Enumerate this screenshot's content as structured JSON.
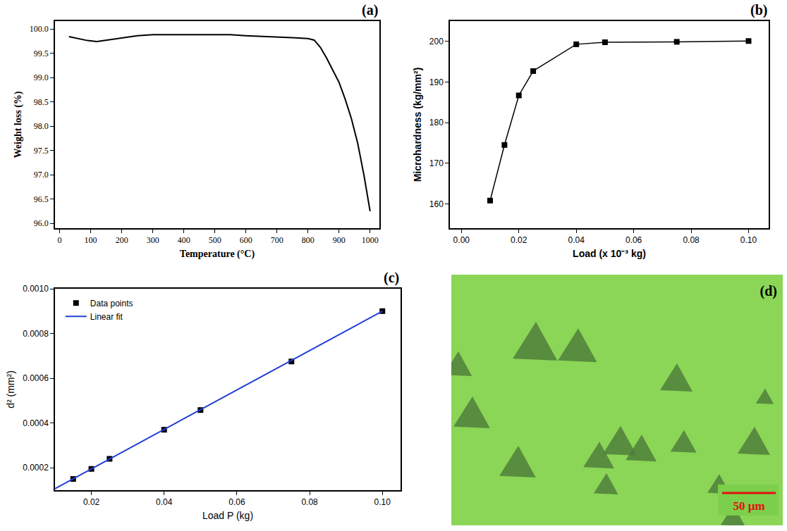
{
  "chart_data": [
    {
      "type": "line",
      "label": "(a)",
      "x_label": "Temperature (°C)",
      "y_label": "Weight loss (%)",
      "xlim": [
        -15,
        1030
      ],
      "ylim": [
        95.9,
        100.16
      ],
      "xticks": [
        0,
        100,
        200,
        300,
        400,
        500,
        600,
        700,
        800,
        900,
        1000
      ],
      "yticks": [
        {
          "value": 96,
          "label": "96.0"
        },
        {
          "value": 96.5,
          "label": "96.5"
        },
        {
          "value": 97,
          "label": "97.0"
        },
        {
          "value": 97.5,
          "label": "97.5"
        },
        {
          "value": 98,
          "label": "98.0"
        },
        {
          "value": 98.5,
          "label": "98.5"
        },
        {
          "value": 99,
          "label": "99.0"
        },
        {
          "value": 99.5,
          "label": "99.5"
        },
        {
          "value": 100,
          "label": "100.0"
        }
      ],
      "grid": false,
      "series": [
        {
          "type": "line",
          "color": "#000000",
          "x": [
            30,
            60,
            90,
            120,
            150,
            200,
            250,
            300,
            400,
            500,
            550,
            600,
            650,
            700,
            750,
            800,
            820,
            840,
            860,
            880,
            900,
            920,
            940,
            960,
            980,
            1000
          ],
          "values": [
            99.84,
            99.8,
            99.76,
            99.74,
            99.77,
            99.82,
            99.86,
            99.88,
            99.88,
            99.88,
            99.88,
            99.86,
            99.85,
            99.83,
            99.82,
            99.8,
            99.77,
            99.62,
            99.4,
            99.15,
            98.9,
            98.55,
            98.15,
            97.65,
            97.0,
            96.25
          ]
        }
      ]
    },
    {
      "type": "line",
      "label": "(b)",
      "x_label": "Load (x 10⁻³ kg)",
      "y_label": "Microhardness (kg/mm²)",
      "xlim": [
        -0.004,
        0.107
      ],
      "ylim": [
        154,
        205
      ],
      "xticks": [
        {
          "value": 0,
          "label": "0.00"
        },
        0.02,
        0.04,
        0.06,
        0.08,
        {
          "value": 0.1,
          "label": "0.10"
        }
      ],
      "yticks": [
        160,
        170,
        180,
        190,
        200
      ],
      "grid": false,
      "series": [
        {
          "type": "line",
          "color": "#000000",
          "marker": "square",
          "x": [
            0.01,
            0.015,
            0.02,
            0.025,
            0.04,
            0.05,
            0.075,
            0.1
          ],
          "values": [
            160.8,
            174.5,
            186.7,
            192.7,
            199.3,
            199.8,
            199.9,
            200.1
          ]
        }
      ]
    },
    {
      "type": "scatter",
      "label": "(c)",
      "x_label": "Load P (kg)",
      "y_label": "d² (mm²)",
      "xlim": [
        0.01,
        0.105
      ],
      "ylim": [
        0.0001,
        0.001
      ],
      "xticks": [
        0.02,
        0.04,
        0.06,
        0.08,
        {
          "value": 0.1,
          "label": "0.10"
        }
      ],
      "yticks": [
        0.0002,
        0.0004,
        0.0006,
        0.0008,
        {
          "value": 0.001,
          "label": "0.0010"
        }
      ],
      "grid": false,
      "legend": "top left",
      "series": [
        {
          "name": "Data points",
          "type": "scatter",
          "color": "#000000",
          "marker": "square",
          "x": [
            0.015,
            0.02,
            0.025,
            0.04,
            0.05,
            0.075,
            0.1
          ],
          "values": [
            0.00015,
            0.000195,
            0.00024,
            0.00037,
            0.000458,
            0.000675,
            0.0009
          ]
        },
        {
          "name": "Linear fit",
          "type": "line",
          "color": "#1f3fd6",
          "x": [
            0.01,
            0.1
          ],
          "values": [
            0.000107,
            0.0009
          ]
        }
      ]
    }
  ],
  "image": {
    "label": "(d)",
    "scale_bar": "50 µm"
  }
}
